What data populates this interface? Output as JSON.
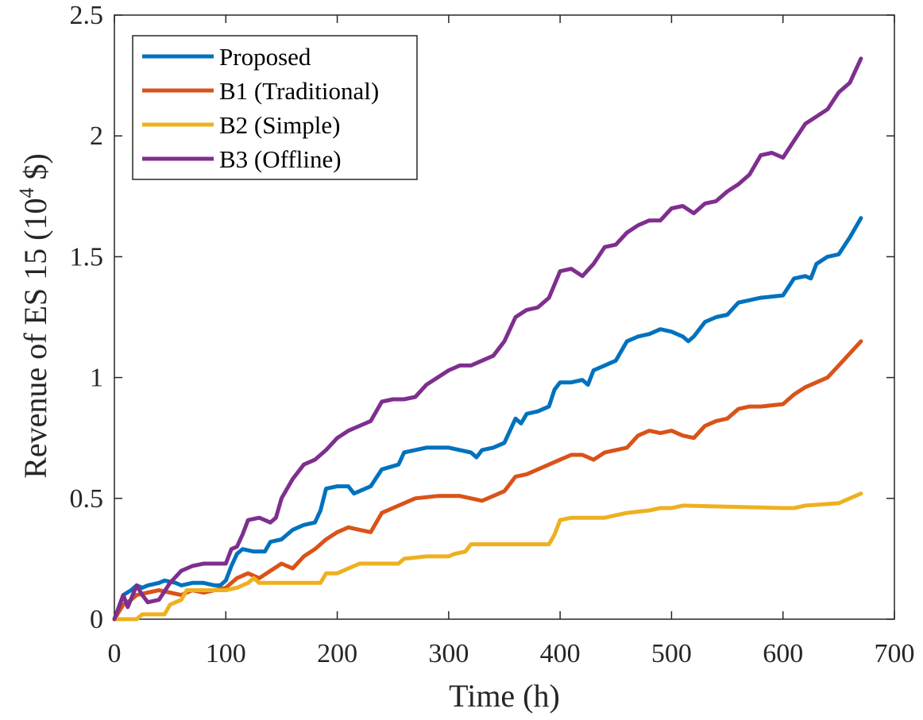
{
  "chart_data": {
    "type": "line",
    "title": "",
    "xlabel": "Time (h)",
    "ylabel_main": "Revenue of ES 15 (10",
    "ylabel_sup": "4",
    "ylabel_end": " $)",
    "xlim": [
      0,
      700
    ],
    "ylim": [
      0,
      2.5
    ],
    "xticks": [
      0,
      100,
      200,
      300,
      400,
      500,
      600,
      700
    ],
    "xtick_labels": [
      "0",
      "100",
      "200",
      "300",
      "400",
      "500",
      "600",
      "700"
    ],
    "yticks": [
      0,
      0.5,
      1,
      1.5,
      2,
      2.5
    ],
    "ytick_labels": [
      "0",
      "0.5",
      "1",
      "1.5",
      "2",
      "2.5"
    ],
    "grid": false,
    "legend_position": "top-left",
    "series": [
      {
        "name": "Proposed",
        "color": "#0072BD",
        "x": [
          0,
          8,
          15,
          20,
          25,
          30,
          40,
          45,
          55,
          60,
          70,
          80,
          90,
          95,
          100,
          105,
          110,
          115,
          125,
          135,
          140,
          150,
          160,
          170,
          180,
          185,
          190,
          200,
          210,
          215,
          220,
          230,
          240,
          255,
          260,
          270,
          280,
          300,
          320,
          325,
          330,
          340,
          350,
          360,
          365,
          370,
          380,
          390,
          395,
          400,
          410,
          420,
          425,
          430,
          440,
          445,
          450,
          460,
          470,
          480,
          490,
          500,
          510,
          515,
          520,
          530,
          540,
          550,
          560,
          570,
          580,
          600,
          610,
          620,
          625,
          630,
          640,
          650,
          660,
          670
        ],
        "values": [
          0.0,
          0.1,
          0.12,
          0.14,
          0.13,
          0.14,
          0.15,
          0.16,
          0.15,
          0.14,
          0.15,
          0.15,
          0.14,
          0.14,
          0.16,
          0.22,
          0.27,
          0.29,
          0.28,
          0.28,
          0.32,
          0.33,
          0.37,
          0.39,
          0.4,
          0.45,
          0.54,
          0.55,
          0.55,
          0.52,
          0.53,
          0.55,
          0.62,
          0.64,
          0.69,
          0.7,
          0.71,
          0.71,
          0.69,
          0.67,
          0.7,
          0.71,
          0.73,
          0.83,
          0.81,
          0.85,
          0.86,
          0.88,
          0.95,
          0.98,
          0.98,
          0.99,
          0.97,
          1.03,
          1.05,
          1.06,
          1.07,
          1.15,
          1.17,
          1.18,
          1.2,
          1.19,
          1.17,
          1.15,
          1.17,
          1.23,
          1.25,
          1.26,
          1.31,
          1.32,
          1.33,
          1.34,
          1.41,
          1.42,
          1.41,
          1.47,
          1.5,
          1.51,
          1.58,
          1.66
        ]
      },
      {
        "name": "B1 (Traditional)",
        "color": "#D95319",
        "x": [
          0,
          8,
          15,
          20,
          30,
          40,
          50,
          60,
          70,
          80,
          100,
          110,
          120,
          130,
          140,
          150,
          160,
          170,
          180,
          190,
          200,
          210,
          220,
          230,
          240,
          260,
          270,
          290,
          310,
          320,
          330,
          340,
          350,
          360,
          370,
          380,
          390,
          400,
          410,
          420,
          430,
          440,
          450,
          460,
          470,
          480,
          490,
          500,
          510,
          520,
          530,
          540,
          550,
          560,
          570,
          580,
          600,
          610,
          620,
          630,
          640,
          650,
          660,
          670
        ],
        "values": [
          0.0,
          0.06,
          0.08,
          0.1,
          0.11,
          0.12,
          0.11,
          0.1,
          0.12,
          0.11,
          0.13,
          0.17,
          0.19,
          0.17,
          0.2,
          0.23,
          0.21,
          0.26,
          0.29,
          0.33,
          0.36,
          0.38,
          0.37,
          0.36,
          0.44,
          0.48,
          0.5,
          0.51,
          0.51,
          0.5,
          0.49,
          0.51,
          0.53,
          0.59,
          0.6,
          0.62,
          0.64,
          0.66,
          0.68,
          0.68,
          0.66,
          0.69,
          0.7,
          0.71,
          0.76,
          0.78,
          0.77,
          0.78,
          0.76,
          0.75,
          0.8,
          0.82,
          0.83,
          0.87,
          0.88,
          0.88,
          0.89,
          0.93,
          0.96,
          0.98,
          1.0,
          1.05,
          1.1,
          1.15
        ]
      },
      {
        "name": "B2 (Simple)",
        "color": "#EDB120",
        "x": [
          0,
          20,
          25,
          45,
          50,
          60,
          65,
          100,
          110,
          120,
          125,
          130,
          185,
          190,
          200,
          210,
          220,
          230,
          255,
          260,
          280,
          300,
          305,
          315,
          320,
          390,
          395,
          400,
          410,
          420,
          440,
          450,
          460,
          480,
          490,
          500,
          510,
          600,
          610,
          620,
          650,
          660,
          670
        ],
        "values": [
          0.0,
          0.0,
          0.02,
          0.02,
          0.06,
          0.08,
          0.12,
          0.12,
          0.13,
          0.15,
          0.17,
          0.15,
          0.15,
          0.19,
          0.19,
          0.21,
          0.23,
          0.23,
          0.23,
          0.25,
          0.26,
          0.26,
          0.27,
          0.28,
          0.31,
          0.31,
          0.35,
          0.41,
          0.42,
          0.42,
          0.42,
          0.43,
          0.44,
          0.45,
          0.46,
          0.46,
          0.47,
          0.46,
          0.46,
          0.47,
          0.48,
          0.5,
          0.52
        ]
      },
      {
        "name": "B3 (Offline)",
        "color": "#7E2F8E",
        "x": [
          0,
          8,
          12,
          20,
          25,
          30,
          40,
          50,
          60,
          70,
          80,
          90,
          100,
          105,
          110,
          115,
          120,
          130,
          140,
          145,
          150,
          160,
          170,
          180,
          190,
          200,
          210,
          220,
          230,
          240,
          250,
          260,
          270,
          280,
          290,
          300,
          310,
          320,
          330,
          340,
          350,
          360,
          370,
          380,
          390,
          400,
          410,
          420,
          430,
          440,
          450,
          460,
          470,
          480,
          490,
          500,
          510,
          520,
          530,
          540,
          550,
          560,
          570,
          580,
          590,
          600,
          610,
          620,
          630,
          640,
          650,
          660,
          670
        ],
        "values": [
          0.0,
          0.1,
          0.05,
          0.14,
          0.1,
          0.07,
          0.08,
          0.15,
          0.2,
          0.22,
          0.23,
          0.23,
          0.23,
          0.29,
          0.3,
          0.35,
          0.41,
          0.42,
          0.4,
          0.42,
          0.5,
          0.58,
          0.64,
          0.66,
          0.7,
          0.75,
          0.78,
          0.8,
          0.82,
          0.9,
          0.91,
          0.91,
          0.92,
          0.97,
          1.0,
          1.03,
          1.05,
          1.05,
          1.07,
          1.09,
          1.15,
          1.25,
          1.28,
          1.29,
          1.33,
          1.44,
          1.45,
          1.42,
          1.47,
          1.54,
          1.55,
          1.6,
          1.63,
          1.65,
          1.65,
          1.7,
          1.71,
          1.68,
          1.72,
          1.73,
          1.77,
          1.8,
          1.84,
          1.92,
          1.93,
          1.91,
          1.98,
          2.05,
          2.08,
          2.11,
          2.18,
          2.22,
          2.32
        ]
      }
    ]
  }
}
